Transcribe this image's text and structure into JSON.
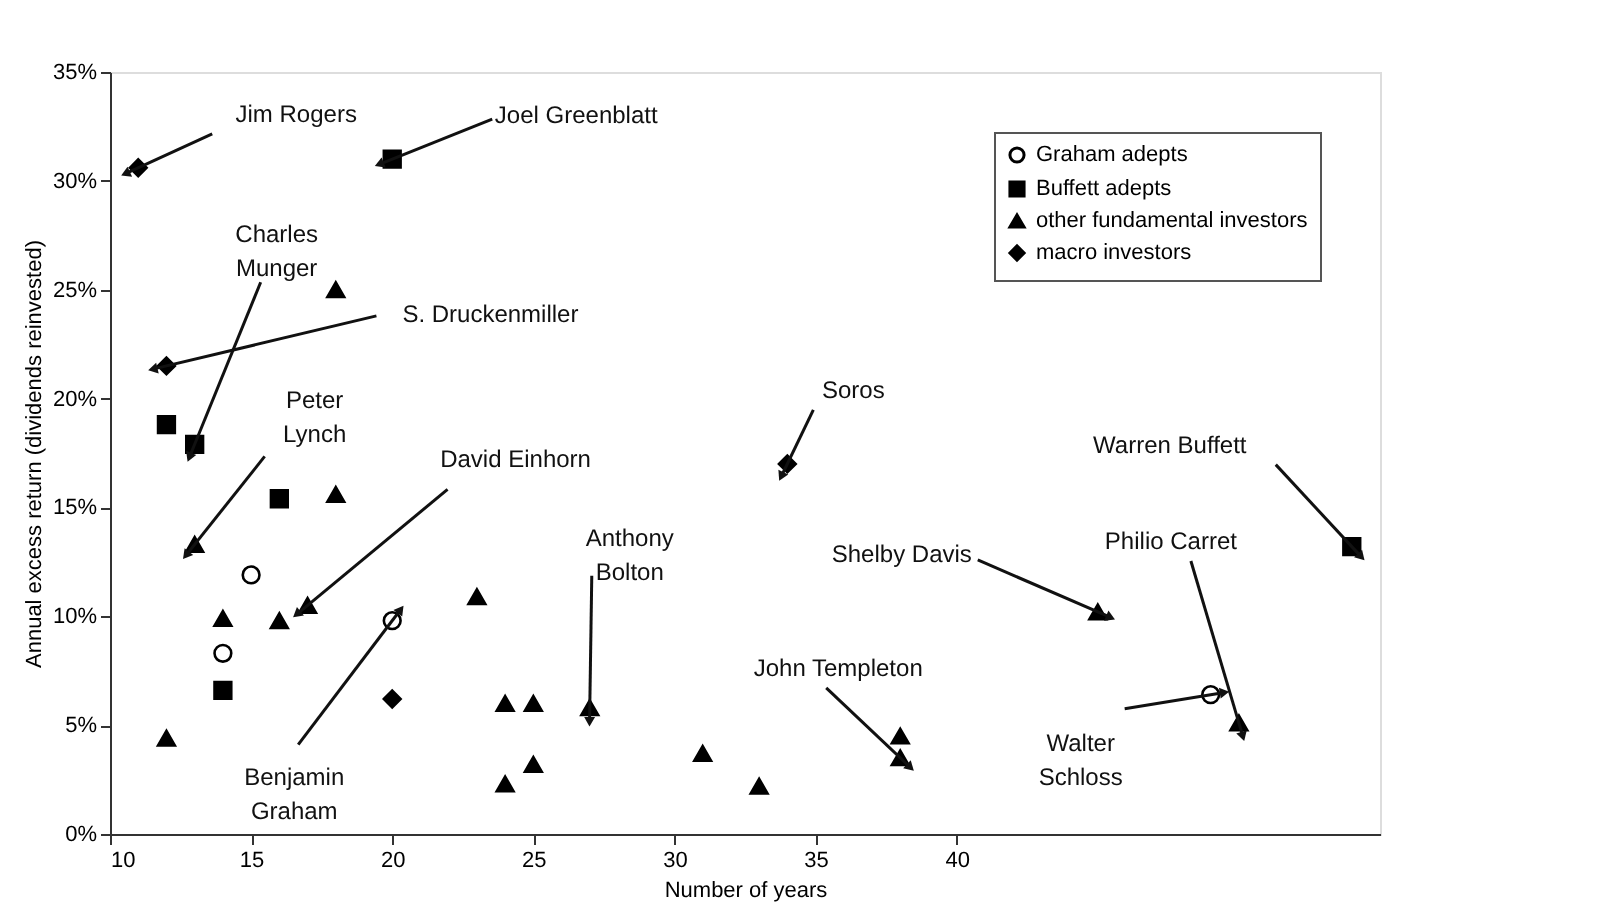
{
  "chart_data": {
    "type": "scatter",
    "xlabel": "Number of years",
    "ylabel": "Annual excess return (dividends reinvested)",
    "xlim": [
      10,
      55
    ],
    "xticks": [
      10,
      15,
      20,
      25,
      30,
      35,
      40
    ],
    "ylim": [
      0,
      35
    ],
    "yticks": [
      {
        "value": 0,
        "label": "0%"
      },
      {
        "value": 5,
        "label": "5%"
      },
      {
        "value": 10,
        "label": "10%"
      },
      {
        "value": 15,
        "label": "15%"
      },
      {
        "value": 20,
        "label": "20%"
      },
      {
        "value": 25,
        "label": "25%"
      },
      {
        "value": 30,
        "label": "30%"
      },
      {
        "value": 35,
        "label": "35%"
      }
    ],
    "grid": false,
    "legend": "top right",
    "series": [
      {
        "name": "Graham adepts",
        "color": "#000000",
        "marker": "circle",
        "x": [
          15,
          14,
          20,
          49
        ],
        "values": [
          11.9,
          8.3,
          9.8,
          6.4
        ]
      },
      {
        "name": "Buffett adepts",
        "color": "#000000",
        "marker": "square",
        "x": [
          20,
          12,
          13,
          16,
          14,
          54
        ],
        "values": [
          31.0,
          18.8,
          17.9,
          15.4,
          6.6,
          13.2
        ]
      },
      {
        "name": "other fundamental investors",
        "color": "#000000",
        "marker": "triangle",
        "x": [
          18,
          18,
          13,
          14,
          16,
          17,
          12,
          23,
          24,
          25,
          27,
          24,
          25,
          31,
          33,
          38,
          38,
          45,
          50
        ],
        "values": [
          25.0,
          15.6,
          13.3,
          9.9,
          9.8,
          10.5,
          4.4,
          10.9,
          6.0,
          6.0,
          5.8,
          2.3,
          3.2,
          3.7,
          2.2,
          4.5,
          3.5,
          10.2,
          5.1
        ]
      },
      {
        "name": "macro investors",
        "color": "#000000",
        "marker": "diamond",
        "x": [
          11,
          12,
          20,
          34
        ],
        "values": [
          30.6,
          21.5,
          6.2,
          17.0
        ]
      }
    ],
    "annotations": [
      {
        "text": "Jim Rogers",
        "x": 11,
        "y": 30.6
      },
      {
        "text": "Joel Greenblatt",
        "x": 20,
        "y": 31.0
      },
      {
        "text": "Charles Munger",
        "x": 13,
        "y": 17.9
      },
      {
        "text": "S. Druckenmiller",
        "x": 12,
        "y": 21.5
      },
      {
        "text": "Peter Lynch",
        "x": 13,
        "y": 13.3
      },
      {
        "text": "David Einhorn",
        "x": 17,
        "y": 10.5
      },
      {
        "text": "Anthony Bolton",
        "x": 27,
        "y": 5.8
      },
      {
        "text": "Soros",
        "x": 34,
        "y": 17.0
      },
      {
        "text": "Warren Buffett",
        "x": 54,
        "y": 13.2
      },
      {
        "text": "Shelby Davis",
        "x": 45,
        "y": 10.2
      },
      {
        "text": "Philio Carret",
        "x": 50,
        "y": 5.1
      },
      {
        "text": "John Templeton",
        "x": 38,
        "y": 3.5
      },
      {
        "text": "Walter Schloss",
        "x": 49,
        "y": 6.4
      },
      {
        "text": "Benjamin Graham",
        "x": 20,
        "y": 9.8
      }
    ]
  }
}
